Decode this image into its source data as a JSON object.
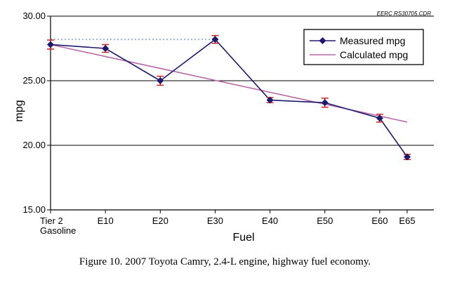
{
  "source_code": "EERC RS30705.CDR",
  "caption": "Figure 10. 2007 Toyota Camry, 2.4-L engine, highway fuel economy.",
  "chart_data": {
    "type": "line",
    "title": "",
    "xlabel": "Fuel",
    "ylabel": "mpg",
    "ylim": [
      15,
      30
    ],
    "yticks": [
      15,
      20,
      25,
      30
    ],
    "ytick_labels": [
      "15.00",
      "20.00",
      "25.00",
      "30.00"
    ],
    "grid": "horizontal",
    "legend_position": "top-right",
    "categories": [
      "Tier 2 Gasoline",
      "E10",
      "E20",
      "E30",
      "E40",
      "E50",
      "E60",
      "E65"
    ],
    "category_label_lines": [
      [
        "Tier 2",
        "Gasoline"
      ],
      [
        "E10"
      ],
      [
        "E20"
      ],
      [
        "E30"
      ],
      [
        "E40"
      ],
      [
        "E50"
      ],
      [
        "E60"
      ],
      [
        "E65"
      ]
    ],
    "x": [
      0,
      10,
      20,
      30,
      40,
      50,
      60,
      65
    ],
    "series": [
      {
        "name": "Measured mpg",
        "color": "#1f1a6e",
        "marker": "diamond",
        "values": [
          27.8,
          27.5,
          25.0,
          28.2,
          23.5,
          23.3,
          22.1,
          19.1
        ],
        "error_bars": [
          0.35,
          0.3,
          0.35,
          0.3,
          0.2,
          0.35,
          0.3,
          0.2
        ],
        "error_bar_color": "#cc2222"
      },
      {
        "name": "Calculated mpg",
        "color": "#b868a8",
        "marker": "none",
        "start": [
          0,
          27.8
        ],
        "end": [
          65,
          21.8
        ]
      }
    ],
    "reference_line": {
      "y": 28.2,
      "x_range": [
        0,
        30
      ],
      "color": "#9bb4e8",
      "style": "dotted"
    }
  }
}
